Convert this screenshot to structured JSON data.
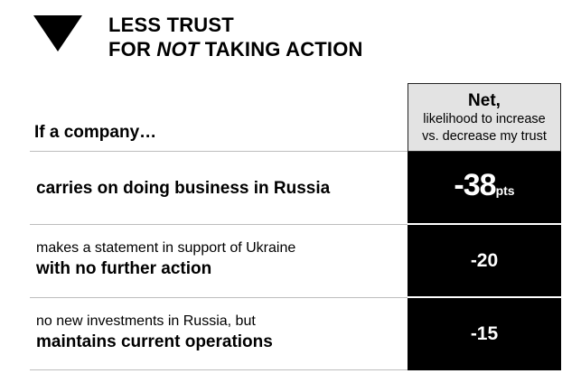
{
  "headline": {
    "line1": "LESS TRUST",
    "line2_prefix": "FOR ",
    "line2_emphasis": "NOT",
    "line2_suffix": " TAKING ACTION"
  },
  "table": {
    "intro": "If a company…",
    "net_title": "Net,",
    "net_subtitle_line1": "likelihood to increase",
    "net_subtitle_line2": "vs. decrease my trust",
    "rows": [
      {
        "label_bold": "carries on doing business in Russia",
        "value": "-38",
        "unit": "pts"
      },
      {
        "label_plain": "makes a statement in support of Ukraine",
        "label_bold": "with no further action",
        "value": "-20"
      },
      {
        "label_plain": "no new investments in Russia, but",
        "label_bold": "maintains current operations",
        "value": "-15"
      }
    ]
  },
  "colors": {
    "accent": "#000000",
    "header_fill": "#e3e3e3",
    "divider": "#bdbdbd"
  }
}
